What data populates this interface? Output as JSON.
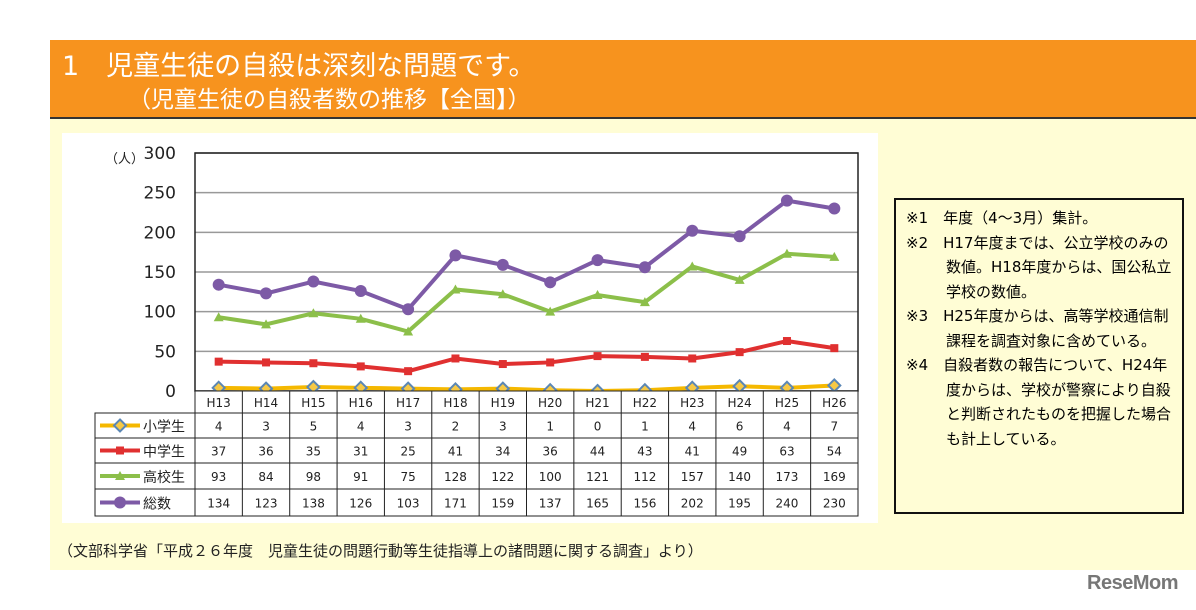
{
  "header": {
    "title": "1　児童生徒の自殺は深刻な問題です。",
    "subtitle": "（児童生徒の自殺者数の推移【全国】）"
  },
  "notes": [
    "※1　年度（4～3月）集計。",
    "※2　H17年度までは、公立学校のみの数値。H18年度からは、国公私立学校の数値。",
    "※3　H25年度からは、高等学校通信制課程を調査対象に含めている。",
    "※4　自殺者数の報告について、H24年度からは、学校が警察により自殺と判断されたものを把握した場合も計上している。"
  ],
  "source": "（文部科学省「平成２６年度　児童生徒の問題行動等生徒指導上の諸問題に関する調査」より）",
  "logo": "ReseMom",
  "chart_data": {
    "type": "line",
    "ylabel": "（人）",
    "ylim": [
      0,
      300
    ],
    "yticks": [
      0,
      50,
      100,
      150,
      200,
      250,
      300
    ],
    "grid": true,
    "legend": "table-bottom",
    "categories": [
      "H13",
      "H14",
      "H15",
      "H16",
      "H17",
      "H18",
      "H19",
      "H20",
      "H21",
      "H22",
      "H23",
      "H24",
      "H25",
      "H26"
    ],
    "series": [
      {
        "name": "小学生",
        "color": "#f5b800",
        "marker": "diamond",
        "values": [
          4,
          3,
          5,
          4,
          3,
          2,
          3,
          1,
          0,
          1,
          4,
          6,
          4,
          7
        ]
      },
      {
        "name": "中学生",
        "color": "#e03030",
        "marker": "square",
        "values": [
          37,
          36,
          35,
          31,
          25,
          41,
          34,
          36,
          44,
          43,
          41,
          49,
          63,
          54
        ]
      },
      {
        "name": "高校生",
        "color": "#8cbf4a",
        "marker": "triangle",
        "values": [
          93,
          84,
          98,
          91,
          75,
          128,
          122,
          100,
          121,
          112,
          157,
          140,
          173,
          169
        ]
      },
      {
        "name": "総数",
        "color": "#7d5aa6",
        "marker": "circle",
        "values": [
          134,
          123,
          138,
          126,
          103,
          171,
          159,
          137,
          165,
          156,
          202,
          195,
          240,
          230
        ]
      }
    ]
  }
}
